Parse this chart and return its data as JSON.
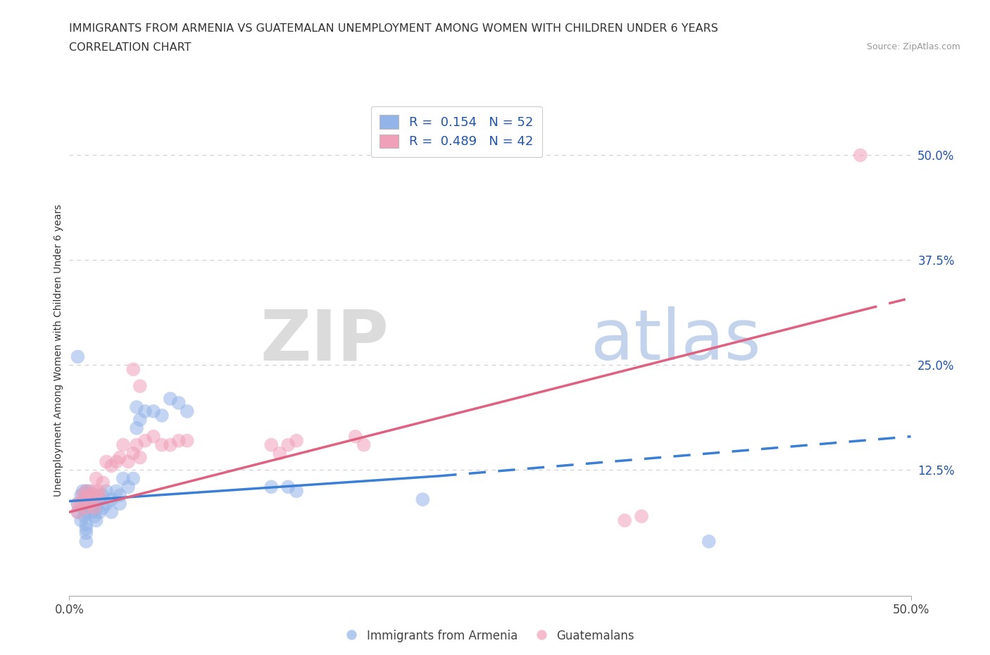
{
  "title_line1": "IMMIGRANTS FROM ARMENIA VS GUATEMALAN UNEMPLOYMENT AMONG WOMEN WITH CHILDREN UNDER 6 YEARS",
  "title_line2": "CORRELATION CHART",
  "source_text": "Source: ZipAtlas.com",
  "ylabel": "Unemployment Among Women with Children Under 6 years",
  "xlim": [
    0.0,
    0.5
  ],
  "ylim": [
    -0.025,
    0.56
  ],
  "right_ytick_labels": [
    "12.5%",
    "25.0%",
    "37.5%",
    "50.0%"
  ],
  "right_ytick_positions": [
    0.125,
    0.25,
    0.375,
    0.5
  ],
  "legend_blue_r": "0.154",
  "legend_blue_n": "52",
  "legend_pink_r": "0.489",
  "legend_pink_n": "42",
  "blue_color": "#92b4e8",
  "pink_color": "#f0a0b8",
  "blue_line_color": "#3a7fd5",
  "pink_line_color": "#e06080",
  "grid_color": "#c8c8c8",
  "background_color": "#ffffff",
  "text_color": "#2255aa",
  "title_color": "#333333",
  "blue_scatter": [
    [
      0.005,
      0.085
    ],
    [
      0.005,
      0.075
    ],
    [
      0.007,
      0.095
    ],
    [
      0.007,
      0.065
    ],
    [
      0.008,
      0.1
    ],
    [
      0.008,
      0.08
    ],
    [
      0.009,
      0.09
    ],
    [
      0.009,
      0.07
    ],
    [
      0.01,
      0.1
    ],
    [
      0.01,
      0.075
    ],
    [
      0.01,
      0.06
    ],
    [
      0.01,
      0.055
    ],
    [
      0.01,
      0.05
    ],
    [
      0.01,
      0.04
    ],
    [
      0.012,
      0.1
    ],
    [
      0.012,
      0.085
    ],
    [
      0.013,
      0.09
    ],
    [
      0.013,
      0.075
    ],
    [
      0.014,
      0.095
    ],
    [
      0.015,
      0.085
    ],
    [
      0.015,
      0.07
    ],
    [
      0.016,
      0.08
    ],
    [
      0.016,
      0.065
    ],
    [
      0.018,
      0.09
    ],
    [
      0.018,
      0.075
    ],
    [
      0.02,
      0.095
    ],
    [
      0.02,
      0.08
    ],
    [
      0.022,
      0.085
    ],
    [
      0.022,
      0.1
    ],
    [
      0.025,
      0.09
    ],
    [
      0.025,
      0.075
    ],
    [
      0.028,
      0.1
    ],
    [
      0.03,
      0.095
    ],
    [
      0.03,
      0.085
    ],
    [
      0.032,
      0.115
    ],
    [
      0.035,
      0.105
    ],
    [
      0.038,
      0.115
    ],
    [
      0.04,
      0.2
    ],
    [
      0.04,
      0.175
    ],
    [
      0.042,
      0.185
    ],
    [
      0.045,
      0.195
    ],
    [
      0.05,
      0.195
    ],
    [
      0.055,
      0.19
    ],
    [
      0.06,
      0.21
    ],
    [
      0.065,
      0.205
    ],
    [
      0.07,
      0.195
    ],
    [
      0.005,
      0.26
    ],
    [
      0.12,
      0.105
    ],
    [
      0.13,
      0.105
    ],
    [
      0.135,
      0.1
    ],
    [
      0.21,
      0.09
    ],
    [
      0.38,
      0.04
    ]
  ],
  "pink_scatter": [
    [
      0.005,
      0.085
    ],
    [
      0.005,
      0.075
    ],
    [
      0.007,
      0.085
    ],
    [
      0.008,
      0.095
    ],
    [
      0.009,
      0.09
    ],
    [
      0.01,
      0.1
    ],
    [
      0.01,
      0.08
    ],
    [
      0.012,
      0.095
    ],
    [
      0.013,
      0.085
    ],
    [
      0.014,
      0.1
    ],
    [
      0.015,
      0.095
    ],
    [
      0.015,
      0.08
    ],
    [
      0.016,
      0.115
    ],
    [
      0.017,
      0.1
    ],
    [
      0.018,
      0.095
    ],
    [
      0.02,
      0.11
    ],
    [
      0.022,
      0.135
    ],
    [
      0.025,
      0.13
    ],
    [
      0.028,
      0.135
    ],
    [
      0.03,
      0.14
    ],
    [
      0.032,
      0.155
    ],
    [
      0.035,
      0.135
    ],
    [
      0.038,
      0.145
    ],
    [
      0.04,
      0.155
    ],
    [
      0.042,
      0.14
    ],
    [
      0.045,
      0.16
    ],
    [
      0.05,
      0.165
    ],
    [
      0.055,
      0.155
    ],
    [
      0.06,
      0.155
    ],
    [
      0.065,
      0.16
    ],
    [
      0.07,
      0.16
    ],
    [
      0.038,
      0.245
    ],
    [
      0.042,
      0.225
    ],
    [
      0.12,
      0.155
    ],
    [
      0.125,
      0.145
    ],
    [
      0.13,
      0.155
    ],
    [
      0.135,
      0.16
    ],
    [
      0.17,
      0.165
    ],
    [
      0.175,
      0.155
    ],
    [
      0.33,
      0.065
    ],
    [
      0.34,
      0.07
    ],
    [
      0.47,
      0.5
    ]
  ],
  "blue_regression_solid": {
    "x_start": 0.0,
    "x_end": 0.22,
    "y_start": 0.088,
    "y_end": 0.118
  },
  "blue_regression_dashed": {
    "x_start": 0.22,
    "x_end": 0.5,
    "y_start": 0.118,
    "y_end": 0.165
  },
  "pink_regression_solid": {
    "x_start": 0.0,
    "x_end": 0.47,
    "y_start": 0.075,
    "y_end": 0.315
  },
  "pink_regression_dashed": {
    "x_start": 0.47,
    "x_end": 0.5,
    "y_start": 0.315,
    "y_end": 0.33
  }
}
